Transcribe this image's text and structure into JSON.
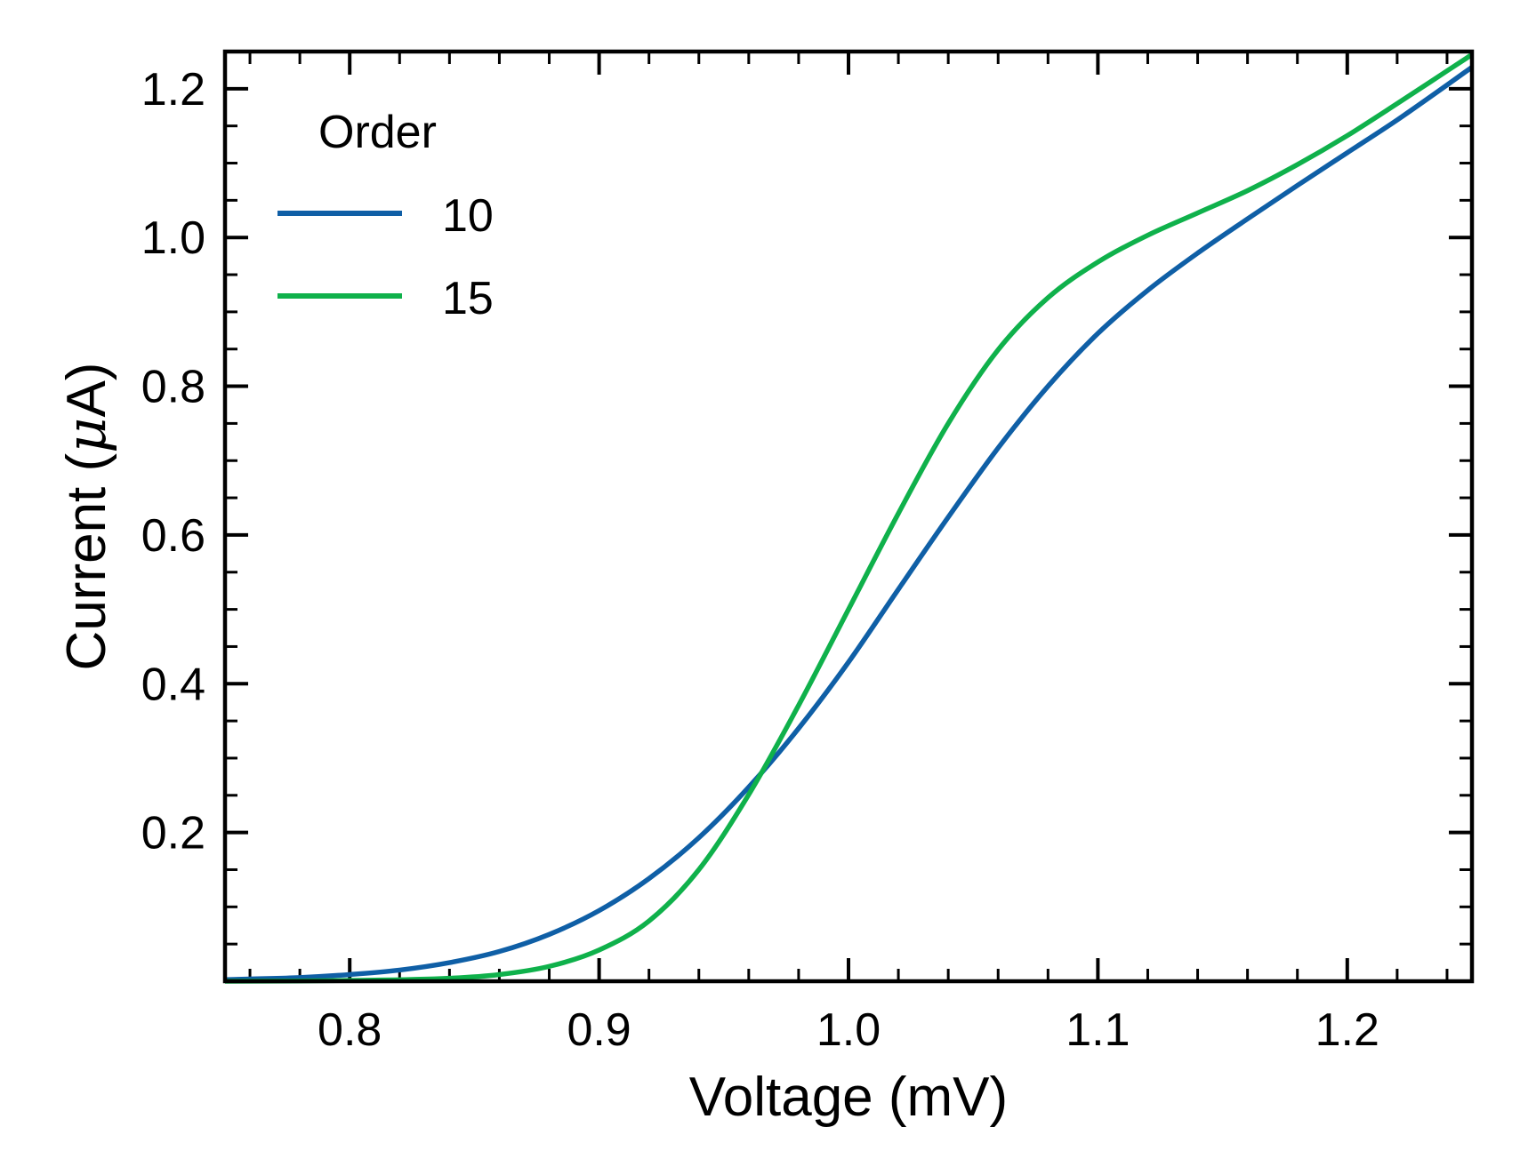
{
  "chart_data": {
    "type": "line",
    "title": "",
    "xlabel": "Voltage (mV)",
    "ylabel_prefix": "Current (",
    "ylabel_mu": "μ",
    "ylabel_suffix": "A)",
    "xlim": [
      0.75,
      1.25
    ],
    "ylim": [
      0.0,
      1.25
    ],
    "x_ticks": [
      0.8,
      0.9,
      1.0,
      1.1,
      1.2
    ],
    "x_tick_labels": [
      "0.8",
      "0.9",
      "1.0",
      "1.1",
      "1.2"
    ],
    "y_ticks": [
      0.2,
      0.4,
      0.6,
      0.8,
      1.0,
      1.2
    ],
    "y_tick_labels": [
      "0.2",
      "0.4",
      "0.6",
      "0.8",
      "1.0",
      "1.2"
    ],
    "x_minor_step": 0.02,
    "y_minor_step": 0.05,
    "grid": false,
    "legend": {
      "title": "Order",
      "placement": "top-left"
    },
    "series": [
      {
        "name": "10",
        "color": "#0f5fa6",
        "x": [
          0.75,
          0.76,
          0.78,
          0.8,
          0.82,
          0.84,
          0.86,
          0.88,
          0.9,
          0.92,
          0.94,
          0.96,
          0.98,
          1.0,
          1.02,
          1.04,
          1.06,
          1.08,
          1.1,
          1.12,
          1.14,
          1.16,
          1.18,
          1.2,
          1.22,
          1.24,
          1.25
        ],
        "y": [
          0.002,
          0.003,
          0.005,
          0.009,
          0.015,
          0.025,
          0.04,
          0.063,
          0.095,
          0.138,
          0.193,
          0.261,
          0.34,
          0.429,
          0.527,
          0.624,
          0.717,
          0.8,
          0.871,
          0.929,
          0.979,
          1.025,
          1.07,
          1.114,
          1.158,
          1.205,
          1.229
        ]
      },
      {
        "name": "15",
        "color": "#0fb14b",
        "x": [
          0.75,
          0.8,
          0.84,
          0.86,
          0.88,
          0.9,
          0.92,
          0.94,
          0.96,
          0.98,
          1.0,
          1.02,
          1.04,
          1.06,
          1.08,
          1.1,
          1.12,
          1.14,
          1.16,
          1.18,
          1.2,
          1.22,
          1.24,
          1.25
        ],
        "y": [
          0.0,
          0.001,
          0.004,
          0.009,
          0.02,
          0.042,
          0.081,
          0.15,
          0.251,
          0.371,
          0.5,
          0.629,
          0.75,
          0.849,
          0.919,
          0.967,
          1.003,
          1.033,
          1.063,
          1.098,
          1.137,
          1.18,
          1.224,
          1.246
        ]
      }
    ]
  }
}
